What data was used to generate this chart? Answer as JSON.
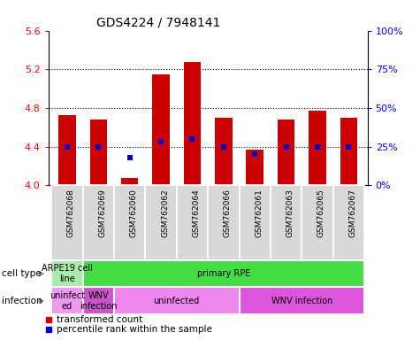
{
  "title": "GDS4224 / 7948141",
  "samples": [
    "GSM762068",
    "GSM762069",
    "GSM762060",
    "GSM762062",
    "GSM762064",
    "GSM762066",
    "GSM762061",
    "GSM762063",
    "GSM762065",
    "GSM762067"
  ],
  "transformed_count": [
    4.73,
    4.68,
    4.08,
    5.15,
    5.28,
    4.7,
    4.37,
    4.68,
    4.77,
    4.7
  ],
  "percentile_rank": [
    25,
    25,
    18,
    28,
    30,
    25,
    20,
    25,
    25,
    25
  ],
  "ylim_left": [
    4.0,
    5.6
  ],
  "ylim_right": [
    0,
    100
  ],
  "yticks_left": [
    4.0,
    4.4,
    4.8,
    5.2,
    5.6
  ],
  "yticks_right": [
    0,
    25,
    50,
    75,
    100
  ],
  "ytick_labels_right": [
    "0%",
    "25%",
    "50%",
    "75%",
    "100%"
  ],
  "bar_color": "#cc0000",
  "dot_color": "#0000cc",
  "bar_width": 0.55,
  "cell_type_groups": [
    {
      "label": "ARPE19 cell\nline",
      "start": 0,
      "end": 0,
      "color": "#aaeaaa"
    },
    {
      "label": "primary RPE",
      "start": 1,
      "end": 9,
      "color": "#44cc44"
    }
  ],
  "infection_groups": [
    {
      "label": "uninfect\ned",
      "start": 0,
      "end": 0,
      "color": "#ee99ee"
    },
    {
      "label": "WNV\ninfection",
      "start": 1,
      "end": 1,
      "color": "#cc55cc"
    },
    {
      "label": "uninfected",
      "start": 2,
      "end": 5,
      "color": "#ee88ee"
    },
    {
      "label": "WNV infection",
      "start": 6,
      "end": 9,
      "color": "#dd55dd"
    }
  ],
  "legend_items": [
    {
      "label": "transformed count",
      "color": "#cc0000"
    },
    {
      "label": "percentile rank within the sample",
      "color": "#0000cc"
    }
  ],
  "label_cell_type": "cell type",
  "label_infection": "infection"
}
